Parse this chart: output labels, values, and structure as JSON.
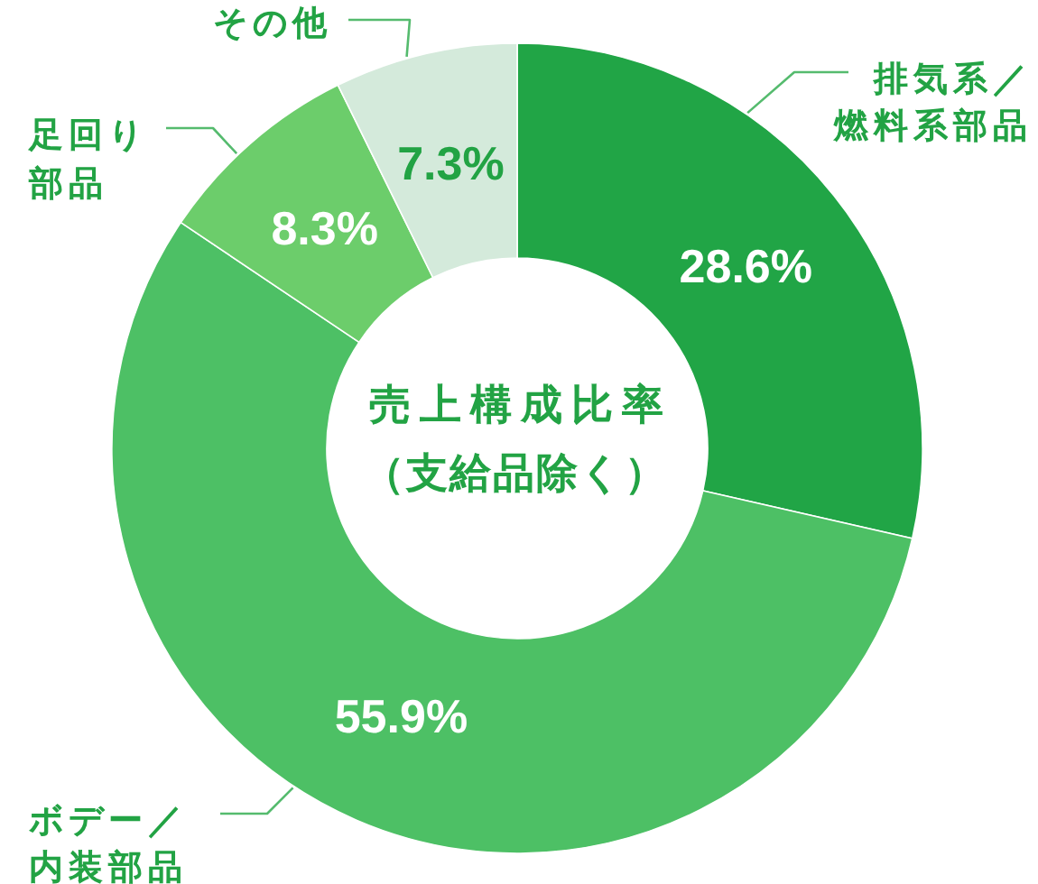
{
  "chart_data": {
    "type": "donut",
    "title": "売上構成比率",
    "subtitle": "（支給品除く）",
    "categories": [
      "排気系／燃料系部品",
      "ボデー／内装部品",
      "足回り部品",
      "その他"
    ],
    "values": [
      28.6,
      55.9,
      8.3,
      7.3
    ],
    "colors": [
      "#21a546",
      "#4dc065",
      "#6ccd6b",
      "#d4eadb"
    ],
    "value_labels": [
      "28.6%",
      "55.9%",
      "8.3%",
      "7.3%"
    ]
  }
}
